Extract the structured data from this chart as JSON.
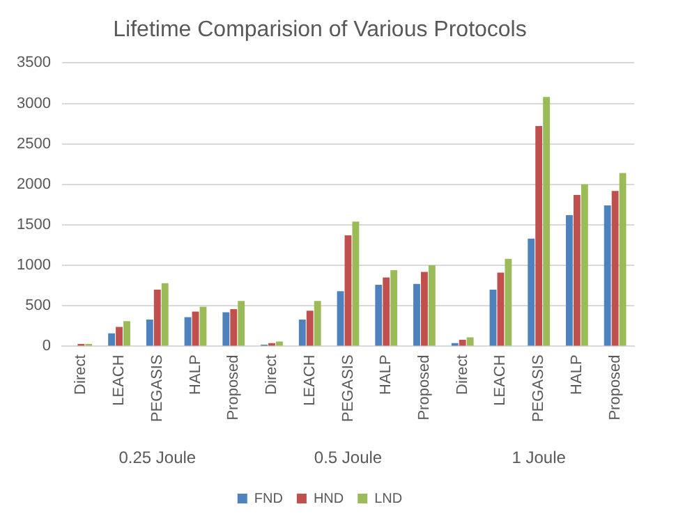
{
  "chart_data": {
    "type": "bar",
    "title": "Lifetime Comparision of Various Protocols",
    "categories": [
      "Direct",
      "LEACH",
      "PEGASIS",
      "HALP",
      "Proposed",
      "Direct",
      "LEACH",
      "PEGASIS",
      "HALP",
      "Proposed",
      "Direct",
      "LEACH",
      "PEGASIS",
      "HALP",
      "Proposed"
    ],
    "series": [
      {
        "name": "FND",
        "color": "#4f81bd",
        "values": [
          null,
          160,
          330,
          360,
          420,
          20,
          330,
          680,
          760,
          770,
          40,
          700,
          1330,
          1620,
          1740
        ]
      },
      {
        "name": "HND",
        "color": "#c0504d",
        "values": [
          30,
          240,
          700,
          430,
          460,
          40,
          440,
          1370,
          850,
          920,
          80,
          910,
          2720,
          1870,
          1920
        ]
      },
      {
        "name": "LND",
        "color": "#9bbb59",
        "values": [
          30,
          310,
          780,
          490,
          560,
          60,
          560,
          1540,
          940,
          1000,
          110,
          1080,
          3080,
          2000,
          2140
        ]
      }
    ],
    "ylim": [
      0,
      3500
    ],
    "yticks": [
      0,
      500,
      1000,
      1500,
      2000,
      2500,
      3000,
      3500
    ],
    "grid": "y",
    "legend": "bottom",
    "annotations": [
      "0.25 Joule",
      "0.5 Joule",
      "1 Joule"
    ]
  }
}
